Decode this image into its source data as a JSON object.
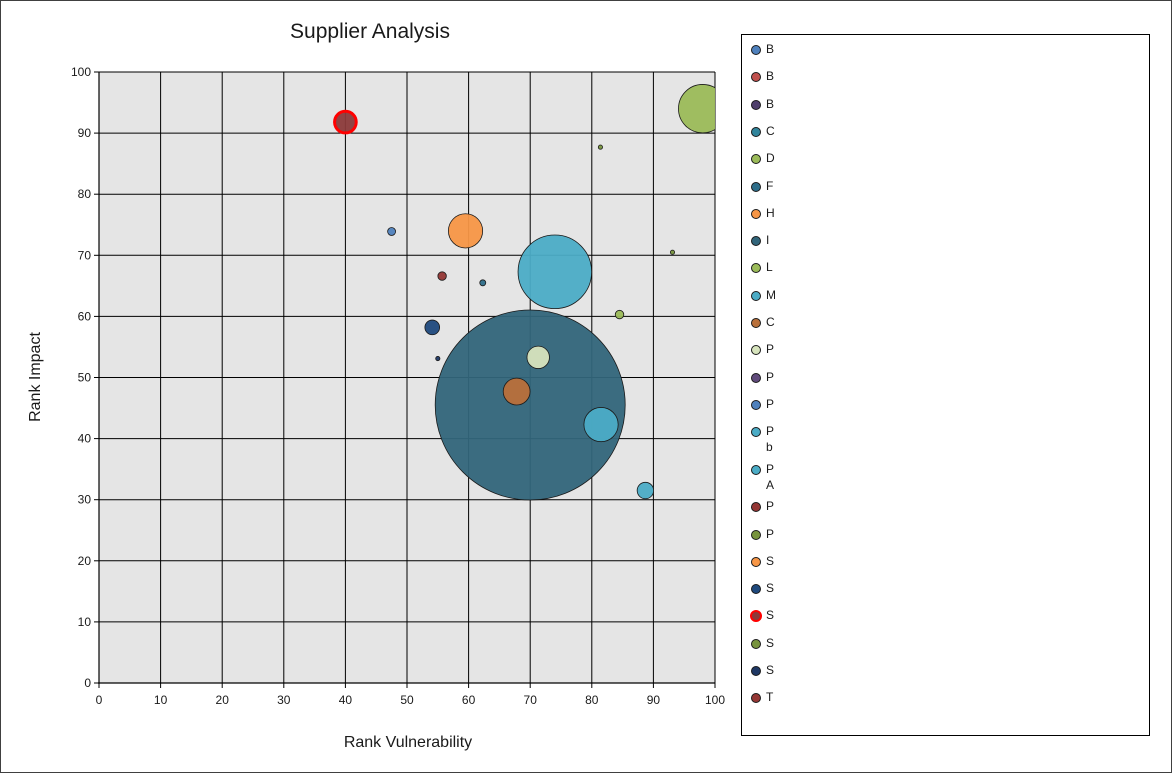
{
  "chart_data": {
    "type": "bubble",
    "title": "Supplier Analysis",
    "xlabel": "Rank Vulnerability",
    "ylabel": "Rank Impact",
    "xlim": [
      0,
      100
    ],
    "ylim": [
      0,
      100
    ],
    "x_ticks": [
      "0",
      "10",
      "20",
      "30",
      "40",
      "50",
      "60",
      "70",
      "80",
      "90",
      "100"
    ],
    "y_ticks": [
      "0",
      "10",
      "20",
      "30",
      "40",
      "50",
      "60",
      "70",
      "80",
      "90",
      "100"
    ],
    "grid": true,
    "legend_position": "right",
    "series": [
      {
        "name": "B",
        "color": "#4f81bd",
        "x": [],
        "y": [],
        "size": []
      },
      {
        "name": "B",
        "color": "#c0504d",
        "x": [],
        "y": [],
        "size": []
      },
      {
        "name": "B",
        "color": "#4f3f6b",
        "x": [],
        "y": [],
        "size": []
      },
      {
        "name": "C",
        "color": "#31859c",
        "x": [],
        "y": [],
        "size": []
      },
      {
        "name": "D",
        "color": "#9bbb59",
        "x": [
          98
        ],
        "y": [
          94
        ],
        "size": [
          13
        ]
      },
      {
        "name": "F",
        "color": "#2e6e8a",
        "x": [
          62.3
        ],
        "y": [
          65.5
        ],
        "size": [
          0.2
        ]
      },
      {
        "name": "H",
        "color": "#f79646",
        "x": [
          59.5
        ],
        "y": [
          74
        ],
        "size": [
          6.5
        ]
      },
      {
        "name": "I",
        "color": "#31657a",
        "x": [
          70
        ],
        "y": [
          45.5
        ],
        "size": [
          200
        ]
      },
      {
        "name": "L",
        "color": "#9bbb59",
        "x": [
          84.5
        ],
        "y": [
          60.3
        ],
        "size": [
          0.4
        ]
      },
      {
        "name": "M",
        "color": "#4bacc6",
        "x": [
          74
        ],
        "y": [
          67.3
        ],
        "size": [
          30
        ]
      },
      {
        "name": "C",
        "color": "#b9703a",
        "x": [
          67.8
        ],
        "y": [
          47.7
        ],
        "size": [
          4
        ]
      },
      {
        "name": "P",
        "color": "#d7e4bd",
        "x": [
          71.3
        ],
        "y": [
          53.3
        ],
        "size": [
          2.8
        ]
      },
      {
        "name": "P",
        "color": "#604a7b",
        "x": [],
        "y": [],
        "size": []
      },
      {
        "name": "P",
        "color": "#4f81bd",
        "x": [
          47.5
        ],
        "y": [
          73.9
        ],
        "size": [
          0.35
        ]
      },
      {
        "name": "P\nb",
        "color": "#4bacc6",
        "x": [
          81.5
        ],
        "y": [
          42.3
        ],
        "size": [
          6.5
        ]
      },
      {
        "name": "P\nA",
        "color": "#4bacc6",
        "x": [
          88.7
        ],
        "y": [
          31.5
        ],
        "size": [
          1.5
        ]
      },
      {
        "name": "P",
        "color": "#943634",
        "x": [
          55.7
        ],
        "y": [
          66.6
        ],
        "size": [
          0.4
        ]
      },
      {
        "name": "P",
        "color": "#77933c",
        "x": [
          93.1
        ],
        "y": [
          70.5
        ],
        "size": [
          0.1
        ]
      },
      {
        "name": "S",
        "color": "#f79646",
        "x": [],
        "y": [],
        "size": []
      },
      {
        "name": "S",
        "color": "#1f497d",
        "x": [
          54.1
        ],
        "y": [
          58.2
        ],
        "size": [
          1.2
        ]
      },
      {
        "name": "S",
        "color": "#8b3a3a",
        "x": [
          40
        ],
        "y": [
          91.8
        ],
        "size": [
          2.6
        ],
        "highlight": true
      },
      {
        "name": "S",
        "color": "#77933c",
        "x": [
          81.4
        ],
        "y": [
          87.7
        ],
        "size": [
          0.1
        ]
      },
      {
        "name": "S",
        "color": "#1f3864",
        "x": [
          55
        ],
        "y": [
          53.1
        ],
        "size": [
          0.1
        ]
      },
      {
        "name": "T",
        "color": "#953735",
        "x": [],
        "y": [],
        "size": []
      }
    ]
  }
}
